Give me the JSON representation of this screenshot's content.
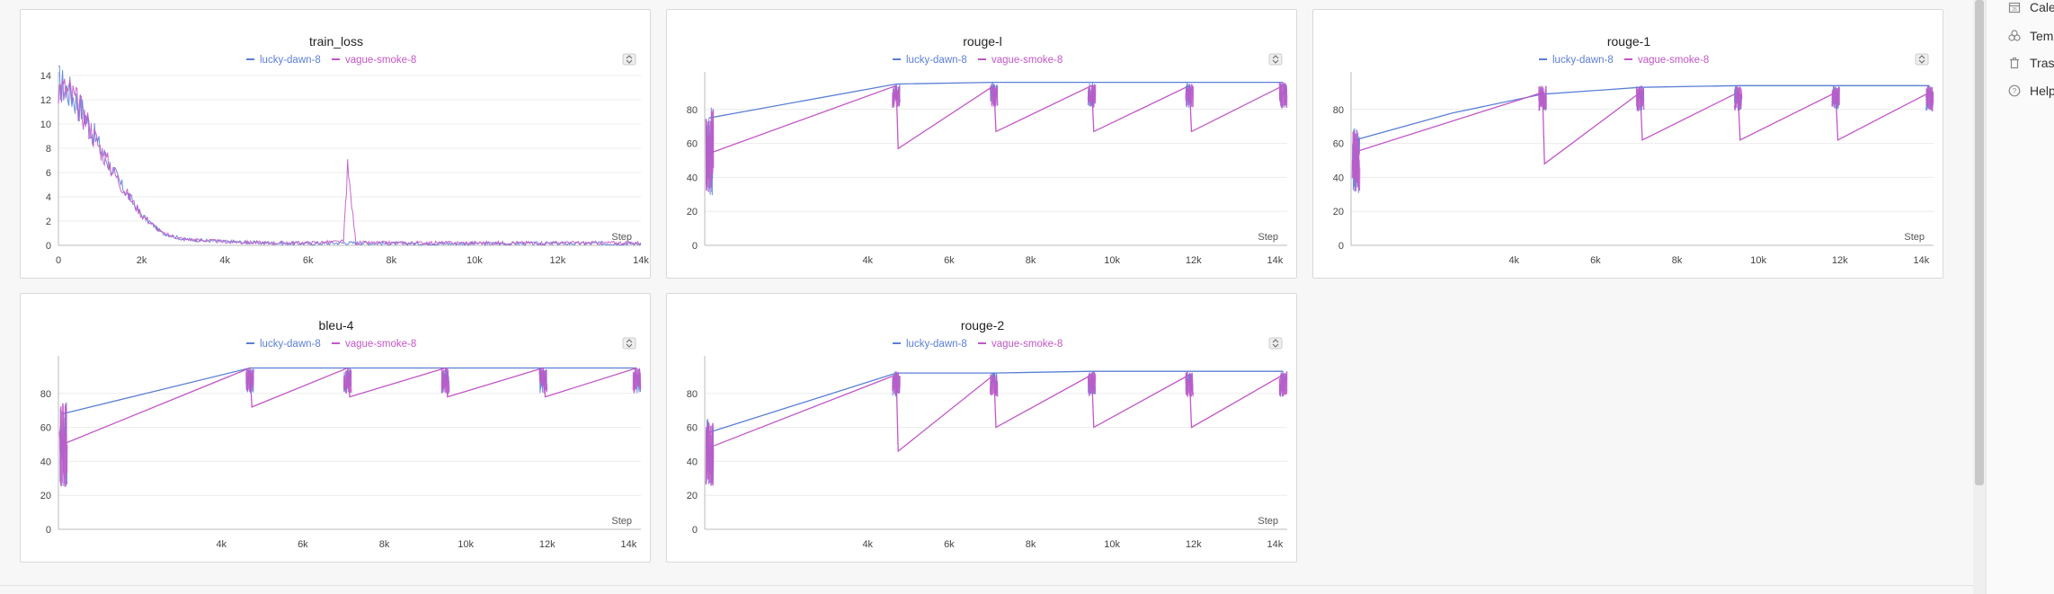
{
  "legend": {
    "run_a": "lucky-dawn-8",
    "run_b": "vague-smoke-8",
    "run_a_color": "#5b7fd6",
    "run_b_color": "#c257c7"
  },
  "sidebar": {
    "items": [
      {
        "label": "Calendar",
        "icon": "calendar-icon"
      },
      {
        "label": "Templates",
        "icon": "templates-icon"
      },
      {
        "label": "Trash",
        "icon": "trash-icon"
      },
      {
        "label": "Help",
        "icon": "help-icon"
      }
    ]
  },
  "chart_data": [
    {
      "type": "line",
      "title": "train_loss",
      "xlabel": "Step",
      "xlim": [
        0,
        14000
      ],
      "ylim": [
        0,
        14
      ],
      "xticks": [
        "0",
        "2k",
        "4k",
        "6k",
        "8k",
        "10k",
        "12k",
        "14k"
      ],
      "yticks": [
        "0",
        "2",
        "4",
        "6",
        "8",
        "10",
        "12",
        "14"
      ],
      "series": [
        {
          "name": "lucky-dawn-8",
          "x": [
            0,
            300,
            600,
            1000,
            1500,
            2000,
            2500,
            3000,
            4000,
            5000,
            6000,
            7000,
            8000,
            10000,
            12000,
            14000
          ],
          "y": [
            13.5,
            12.5,
            11,
            8,
            5,
            2.5,
            1.0,
            0.5,
            0.3,
            0.2,
            0.15,
            0.2,
            0.15,
            0.15,
            0.15,
            0.15
          ]
        },
        {
          "name": "vague-smoke-8",
          "x": [
            0,
            300,
            600,
            1000,
            1500,
            2000,
            2500,
            3000,
            4000,
            5000,
            6000,
            6850,
            6950,
            7150,
            8000,
            10000,
            12000,
            14000
          ],
          "y": [
            13,
            12.5,
            10.8,
            8,
            5,
            2.5,
            1.0,
            0.5,
            0.3,
            0.2,
            0.2,
            0.3,
            6.4,
            0.2,
            0.2,
            0.2,
            0.2,
            0.2
          ]
        }
      ]
    },
    {
      "type": "line",
      "title": "rouge-l",
      "xlabel": "Step",
      "xlim": [
        0,
        14300
      ],
      "ylim": [
        0,
        100
      ],
      "xticks": [
        "4k",
        "6k",
        "8k",
        "10k",
        "12k",
        "14k"
      ],
      "yticks": [
        "0",
        "20",
        "40",
        "60",
        "80"
      ],
      "series": [
        {
          "name": "lucky-dawn-8",
          "x": [
            100,
            4700,
            7100,
            9500,
            11900,
            14200
          ],
          "y": [
            75,
            95,
            96,
            96,
            96,
            96
          ]
        },
        {
          "name": "vague-smoke-8",
          "x": [
            100,
            4700,
            4750,
            7100,
            7150,
            9500,
            9550,
            11900,
            11950,
            14200
          ],
          "y": [
            54,
            94,
            57,
            94,
            67,
            94,
            67,
            94,
            67,
            94
          ]
        }
      ]
    },
    {
      "type": "line",
      "title": "rouge-1",
      "xlabel": "Step",
      "xlim": [
        0,
        14300
      ],
      "ylim": [
        0,
        100
      ],
      "xticks": [
        "4k",
        "6k",
        "8k",
        "10k",
        "12k",
        "14k"
      ],
      "yticks": [
        "0",
        "20",
        "40",
        "60",
        "80"
      ],
      "series": [
        {
          "name": "lucky-dawn-8",
          "x": [
            100,
            2500,
            4700,
            7100,
            9500,
            11900,
            14200
          ],
          "y": [
            62,
            78,
            89,
            93,
            94,
            94,
            94
          ]
        },
        {
          "name": "vague-smoke-8",
          "x": [
            100,
            4700,
            4750,
            7100,
            7150,
            9500,
            9550,
            11900,
            11950,
            14200
          ],
          "y": [
            55,
            90,
            48,
            90,
            62,
            90,
            62,
            90,
            62,
            90
          ]
        }
      ]
    },
    {
      "type": "line",
      "title": "bleu-4",
      "xlabel": "Step",
      "xlim": [
        0,
        14300
      ],
      "ylim": [
        0,
        100
      ],
      "xticks": [
        "4k",
        "6k",
        "8k",
        "10k",
        "12k",
        "14k"
      ],
      "yticks": [
        "0",
        "20",
        "40",
        "60",
        "80"
      ],
      "series": [
        {
          "name": "lucky-dawn-8",
          "x": [
            100,
            4700,
            7100,
            9500,
            11900,
            14200
          ],
          "y": [
            68,
            95,
            95,
            95,
            95,
            95
          ]
        },
        {
          "name": "vague-smoke-8",
          "x": [
            100,
            4700,
            4750,
            7100,
            7150,
            9500,
            9550,
            11900,
            11950,
            14200
          ],
          "y": [
            50,
            95,
            72,
            95,
            78,
            95,
            78,
            95,
            78,
            95
          ]
        }
      ]
    },
    {
      "type": "line",
      "title": "rouge-2",
      "xlabel": "Step",
      "xlim": [
        0,
        14300
      ],
      "ylim": [
        0,
        100
      ],
      "xticks": [
        "4k",
        "6k",
        "8k",
        "10k",
        "12k",
        "14k"
      ],
      "yticks": [
        "0",
        "20",
        "40",
        "60",
        "80"
      ],
      "series": [
        {
          "name": "lucky-dawn-8",
          "x": [
            100,
            4700,
            7100,
            9500,
            11900,
            14200
          ],
          "y": [
            57,
            92,
            92,
            93,
            93,
            93
          ]
        },
        {
          "name": "vague-smoke-8",
          "x": [
            100,
            4700,
            4750,
            7100,
            7150,
            9500,
            9550,
            11900,
            11950,
            14200
          ],
          "y": [
            48,
            91,
            46,
            91,
            60,
            91,
            60,
            91,
            60,
            91
          ]
        }
      ]
    }
  ]
}
